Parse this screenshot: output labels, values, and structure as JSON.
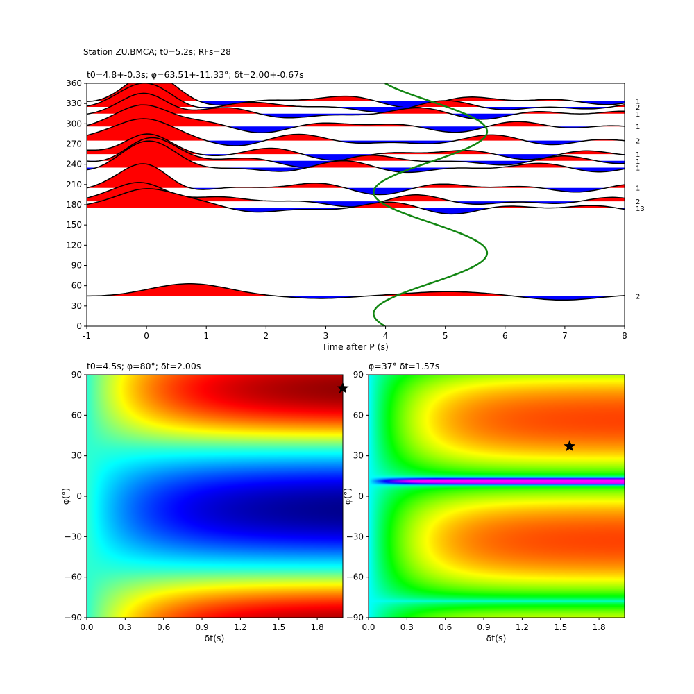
{
  "figure_title": "Station ZU.BMCA; t0=5.2s; RFs=28",
  "colors": {
    "positive": "#ff0000",
    "negative": "#0000ff",
    "curve": "#128612",
    "trace": "#000000",
    "star": "#000000"
  },
  "chart_data": [
    {
      "type": "line",
      "title": "t0=4.8+-0.3s; φ=63.51+-11.33°; δt=2.00+-0.67s",
      "xlabel": "Time after P (s)",
      "ylabel": "",
      "xlim": [
        -1,
        8
      ],
      "ylim": [
        0,
        360
      ],
      "xticks": [
        "-1",
        "0",
        "1",
        "2",
        "3",
        "4",
        "5",
        "6",
        "7",
        "8"
      ],
      "yticks": [
        "0",
        "30",
        "60",
        "90",
        "120",
        "150",
        "180",
        "210",
        "240",
        "270",
        "300",
        "330",
        "360"
      ],
      "traces": [
        {
          "baz": 334,
          "count": "1",
          "amp": 0.45
        },
        {
          "baz": 325,
          "count": "2",
          "amp": 0.55
        },
        {
          "baz": 315,
          "count": "1",
          "amp": 0.55
        },
        {
          "baz": 296,
          "count": "1",
          "amp": 0.55
        },
        {
          "baz": 275,
          "count": "2",
          "amp": 0.5
        },
        {
          "baz": 255,
          "count": "1",
          "amp": 0.55
        },
        {
          "baz": 245,
          "count": "1",
          "amp": 0.5
        },
        {
          "baz": 235,
          "count": "1",
          "amp": 0.55
        },
        {
          "baz": 205,
          "count": "1",
          "amp": 0.55
        },
        {
          "baz": 185,
          "count": "2",
          "amp": 0.55
        },
        {
          "baz": 175,
          "count": "13",
          "amp": 0.55
        },
        {
          "baz": 45,
          "count": "2",
          "amp": 0.55
        }
      ],
      "predicted_curve": {
        "center": 4.75,
        "amplitude": 0.95,
        "period_deg": 180,
        "phase_deg": 63.51
      }
    },
    {
      "type": "heatmap",
      "title": "t0=4.5s; φ=80°; δt=2.00s",
      "xlabel": "δt(s)",
      "ylabel": "φ(°)",
      "xlim": [
        0,
        2
      ],
      "ylim": [
        -90,
        90
      ],
      "xticks": [
        "0.0",
        "0.3",
        "0.6",
        "0.9",
        "1.2",
        "1.5",
        "1.8"
      ],
      "yticks": [
        "−90",
        "−60",
        "−30",
        "0",
        "30",
        "60",
        "90"
      ],
      "colormap": "jet",
      "best": {
        "dt": 2.0,
        "phi": 80
      }
    },
    {
      "type": "heatmap",
      "title": "φ=37° δt=1.57s",
      "xlabel": "δt(s)",
      "ylabel": "φ(°)",
      "xlim": [
        0,
        2
      ],
      "ylim": [
        -90,
        90
      ],
      "xticks": [
        "0.0",
        "0.3",
        "0.6",
        "0.9",
        "1.2",
        "1.5",
        "1.8"
      ],
      "yticks": [
        "−90",
        "−60",
        "−30",
        "0",
        "30",
        "60",
        "90"
      ],
      "colormap": "hsv",
      "best": {
        "dt": 1.57,
        "phi": 37
      }
    }
  ]
}
